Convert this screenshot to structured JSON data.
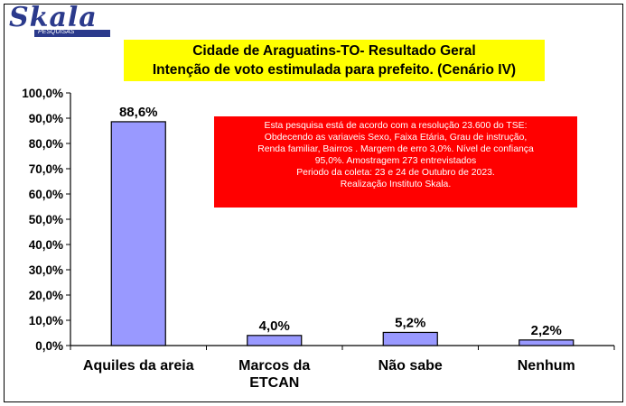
{
  "logo": {
    "name": "Skala",
    "subtitle": "PESQUISAS"
  },
  "header": {
    "title_line1": "Cidade de Araguatins-TO- Resultado Geral",
    "title_line2": "Intenção de voto estimulada para prefeito. (Cenário IV)"
  },
  "note": {
    "lines": [
      "Esta pesquisa está de acordo com a resolução 23.600 do TSE:",
      "Obdecendo as variaveis Sexo, Faixa Etária, Grau de instrução,",
      "Renda familiar, Bairros . Margem de erro 3,0%. Nível de confiança",
      "95,0%. Amostragem 273 entrevistados",
      "Periodo da coleta: 23 e 24 de Outubro de 2023.",
      "Realização Instituto Skala."
    ]
  },
  "colors": {
    "bar_fill": "#9999ff",
    "note_bg": "#ff0000",
    "title_bg": "#ffff00"
  },
  "chart_data": {
    "type": "bar",
    "categories": [
      "Aquiles da areia",
      "Marcos da ETCAN",
      "Não sabe",
      "Nenhum"
    ],
    "category_lines": [
      [
        "Aquiles da areia"
      ],
      [
        "Marcos da",
        "ETCAN"
      ],
      [
        "Não sabe"
      ],
      [
        "Nenhum"
      ]
    ],
    "values": [
      88.6,
      4.0,
      5.2,
      2.2
    ],
    "value_labels": [
      "88,6%",
      "4,0%",
      "5,2%",
      "2,2%"
    ],
    "ylim": [
      0,
      100
    ],
    "yticks": [
      "0,0%",
      "10,0%",
      "20,0%",
      "30,0%",
      "40,0%",
      "50,0%",
      "60,0%",
      "70,0%",
      "80,0%",
      "90,0%",
      "100,0%"
    ],
    "grid": false,
    "title": "Cidade de Araguatins-TO- Resultado Geral Intenção de voto estimulada para prefeito. (Cenário IV)",
    "xlabel": "",
    "ylabel": ""
  }
}
